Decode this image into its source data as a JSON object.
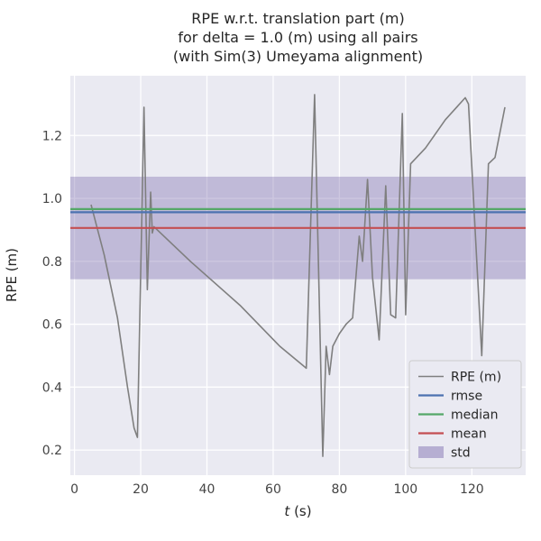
{
  "title_lines": [
    "RPE w.r.t. translation part (m)",
    "for delta = 1.0 (m) using all pairs",
    "(with Sim(3) Umeyama alignment)"
  ],
  "xlabel_italic": "t",
  "xlabel_rest": " (s)",
  "ylabel": "RPE (m)",
  "colors": {
    "fig_bg": "#ffffff",
    "axes_bg": "#eaeaf2",
    "grid": "#ffffff",
    "text": "#262626",
    "tick_text": "#444444",
    "rpe": "#7f7f7f",
    "rmse": "#4c72b0",
    "median": "#55a868",
    "mean": "#c44e52",
    "std": "#8172b2",
    "legend_bg": "#eaeaf2",
    "legend_border": "#cccccc"
  },
  "chart_data": {
    "type": "line",
    "title": "RPE w.r.t. translation part (m) for delta = 1.0 (m) using all pairs (with Sim(3) Umeyama alignment)",
    "xlabel": "t (s)",
    "ylabel": "RPE (m)",
    "xlim": [
      -1.25,
      136.25
    ],
    "ylim": [
      0.12,
      1.39
    ],
    "xticks": [
      0,
      20,
      40,
      60,
      80,
      100,
      120
    ],
    "yticks": [
      0.2,
      0.4,
      0.6,
      0.8,
      1.0,
      1.2
    ],
    "grid": true,
    "legend_position": "lower right",
    "series": [
      {
        "name": "RPE (m)",
        "kind": "line",
        "color_key": "rpe",
        "x": [
          5,
          9,
          13,
          16,
          18,
          19,
          21,
          22,
          23,
          23.5,
          24,
          35,
          50,
          62,
          70,
          72.5,
          75,
          76,
          77,
          78,
          80,
          82,
          84,
          86,
          87,
          88.5,
          90,
          92,
          94,
          95.5,
          97,
          99,
          100,
          101.5,
          106,
          112,
          118,
          119,
          123,
          125,
          127,
          130
        ],
        "y": [
          0.98,
          0.82,
          0.62,
          0.4,
          0.27,
          0.24,
          1.29,
          0.71,
          1.02,
          0.89,
          0.91,
          0.8,
          0.66,
          0.53,
          0.46,
          1.33,
          0.18,
          0.53,
          0.44,
          0.53,
          0.57,
          0.6,
          0.62,
          0.88,
          0.8,
          1.06,
          0.75,
          0.55,
          1.04,
          0.63,
          0.62,
          1.27,
          0.63,
          1.11,
          1.16,
          1.25,
          1.32,
          1.3,
          0.5,
          1.11,
          1.13,
          1.29
        ]
      },
      {
        "name": "rmse",
        "kind": "hline",
        "color_key": "rmse",
        "value": 0.956
      },
      {
        "name": "median",
        "kind": "hline",
        "color_key": "median",
        "value": 0.966
      },
      {
        "name": "mean",
        "kind": "hline",
        "color_key": "mean",
        "value": 0.906
      },
      {
        "name": "std",
        "kind": "band",
        "color_key": "std",
        "range": [
          0.743,
          1.069
        ]
      }
    ]
  }
}
